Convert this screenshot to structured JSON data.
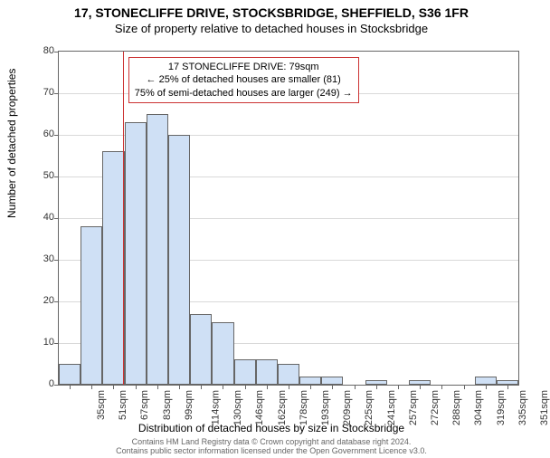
{
  "header": {
    "title": "17, STONECLIFFE DRIVE, STOCKSBRIDGE, SHEFFIELD, S36 1FR",
    "subtitle": "Size of property relative to detached houses in Stocksbridge"
  },
  "chart": {
    "type": "histogram",
    "ylabel": "Number of detached properties",
    "xlabel": "Distribution of detached houses by size in Stocksbridge",
    "ylim": [
      0,
      80
    ],
    "ytick_step": 10,
    "background_color": "#ffffff",
    "grid_color": "#d9d9d9",
    "axis_color": "#666666",
    "bar_fill": "#cfe0f5",
    "bar_border": "#666666",
    "ref_line_color": "#cc3333",
    "ref_line_x": 79,
    "x_categories": [
      "35sqm",
      "51sqm",
      "67sqm",
      "83sqm",
      "99sqm",
      "114sqm",
      "130sqm",
      "146sqm",
      "162sqm",
      "178sqm",
      "193sqm",
      "209sqm",
      "225sqm",
      "241sqm",
      "257sqm",
      "272sqm",
      "288sqm",
      "304sqm",
      "319sqm",
      "335sqm",
      "351sqm"
    ],
    "bar_values": [
      5,
      38,
      56,
      63,
      65,
      60,
      17,
      15,
      6,
      6,
      5,
      2,
      2,
      0,
      1,
      0,
      1,
      0,
      0,
      2,
      1
    ],
    "callout": {
      "line1": "17 STONECLIFFE DRIVE: 79sqm",
      "line2": "← 25% of detached houses are smaller (81)",
      "line3": "75% of semi-detached houses are larger (249) →"
    }
  },
  "footer": {
    "line1": "Contains HM Land Registry data © Crown copyright and database right 2024.",
    "line2": "Contains public sector information licensed under the Open Government Licence v3.0."
  }
}
